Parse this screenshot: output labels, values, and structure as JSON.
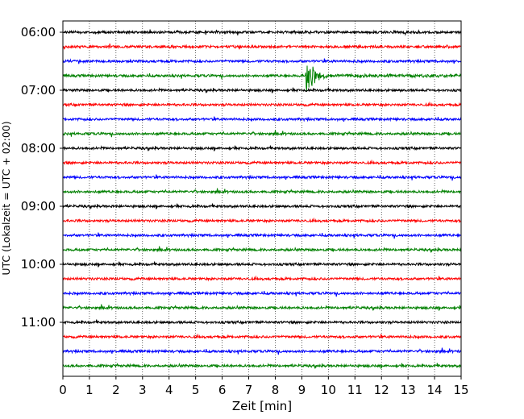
{
  "chart_data": {
    "type": "line",
    "title": "",
    "xlabel": "Zeit  [min]",
    "ylabel": "UTC (Lokalzeit = UTC + 02:00)",
    "xlim": [
      0,
      15
    ],
    "x_ticks": [
      0,
      1,
      2,
      3,
      4,
      5,
      6,
      7,
      8,
      9,
      10,
      11,
      12,
      13,
      14,
      15
    ],
    "grid": "vertical dotted lines at each minute",
    "y_tick_labels": [
      "06:00",
      "07:00",
      "08:00",
      "09:00",
      "10:00",
      "11:00"
    ],
    "trace_colors": [
      "#000000",
      "#ff0000",
      "#0000ff",
      "#008000"
    ],
    "traces": [
      {
        "start": "06:00",
        "color": "#000000"
      },
      {
        "start": "06:15",
        "color": "#ff0000"
      },
      {
        "start": "06:30",
        "color": "#0000ff"
      },
      {
        "start": "06:45",
        "color": "#008000"
      },
      {
        "start": "07:00",
        "color": "#000000"
      },
      {
        "start": "07:15",
        "color": "#ff0000"
      },
      {
        "start": "07:30",
        "color": "#0000ff"
      },
      {
        "start": "07:45",
        "color": "#008000"
      },
      {
        "start": "08:00",
        "color": "#000000"
      },
      {
        "start": "08:15",
        "color": "#ff0000"
      },
      {
        "start": "08:30",
        "color": "#0000ff"
      },
      {
        "start": "08:45",
        "color": "#008000"
      },
      {
        "start": "09:00",
        "color": "#000000"
      },
      {
        "start": "09:15",
        "color": "#ff0000"
      },
      {
        "start": "09:30",
        "color": "#0000ff"
      },
      {
        "start": "09:45",
        "color": "#008000"
      },
      {
        "start": "10:00",
        "color": "#000000"
      },
      {
        "start": "10:15",
        "color": "#ff0000"
      },
      {
        "start": "10:30",
        "color": "#0000ff"
      },
      {
        "start": "10:45",
        "color": "#008000"
      },
      {
        "start": "11:00",
        "color": "#000000"
      },
      {
        "start": "11:15",
        "color": "#ff0000"
      },
      {
        "start": "11:30",
        "color": "#0000ff"
      },
      {
        "start": "11:45",
        "color": "#008000"
      }
    ],
    "annotations": [
      {
        "trace": "06:45",
        "x_min": 9.15,
        "description": "seismic event burst, large amplitude decaying until ~10.5 min"
      }
    ]
  }
}
